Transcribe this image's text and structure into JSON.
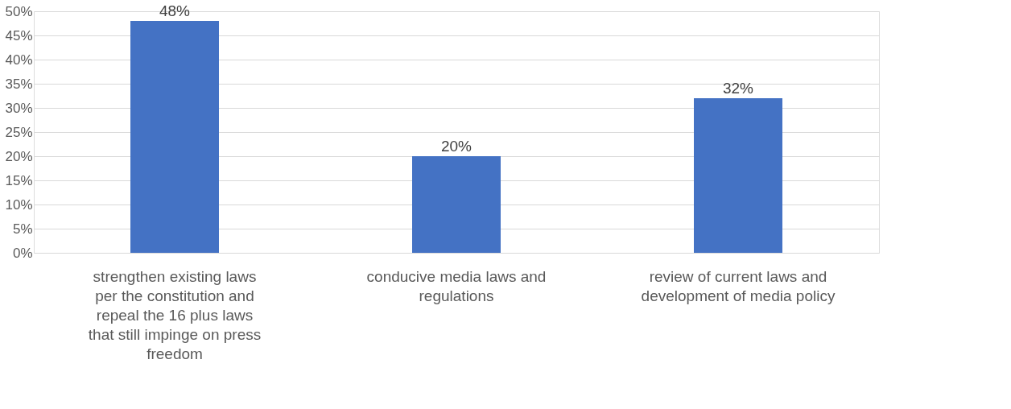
{
  "chart_data": {
    "type": "bar",
    "categories": [
      "strengthen existing laws per the constitution and repeal the 16 plus laws that still impinge on press freedom",
      "conducive media laws and regulations",
      "review of current laws and development of media policy"
    ],
    "values": [
      48,
      20,
      32
    ],
    "value_labels": [
      "48%",
      "20%",
      "32%"
    ],
    "color": "#4472c4",
    "ylim": [
      0,
      50
    ],
    "yticks": [
      {
        "value": 0,
        "label": "0%"
      },
      {
        "value": 5,
        "label": "5%"
      },
      {
        "value": 10,
        "label": "10%"
      },
      {
        "value": 15,
        "label": "15%"
      },
      {
        "value": 20,
        "label": "20%"
      },
      {
        "value": 25,
        "label": "25%"
      },
      {
        "value": 30,
        "label": "30%"
      },
      {
        "value": 35,
        "label": "35%"
      },
      {
        "value": 40,
        "label": "40%"
      },
      {
        "value": 45,
        "label": "45%"
      },
      {
        "value": 50,
        "label": "50%"
      }
    ],
    "grid": "y"
  }
}
